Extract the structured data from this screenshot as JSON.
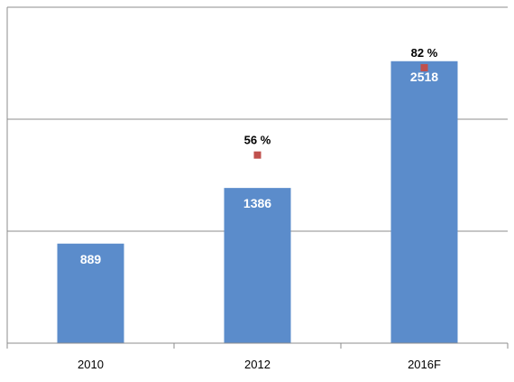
{
  "chart_data": {
    "type": "bar",
    "categories": [
      "2010",
      "2012",
      "2016F"
    ],
    "series": [
      {
        "values": [
          889,
          1386,
          2518
        ],
        "color": "#5b8ccb"
      }
    ],
    "secondary_series": {
      "type": "scatter",
      "values": [
        null,
        56,
        82
      ],
      "labels": [
        "",
        "56 %",
        "82 %"
      ],
      "color": "#c0504d"
    },
    "data_labels": [
      "889",
      "1386",
      "2518"
    ],
    "title": "",
    "xlabel": "",
    "ylabel": "",
    "ylim": [
      0,
      3000
    ],
    "y2lim": [
      0,
      100
    ],
    "grid": true,
    "legend": false
  }
}
